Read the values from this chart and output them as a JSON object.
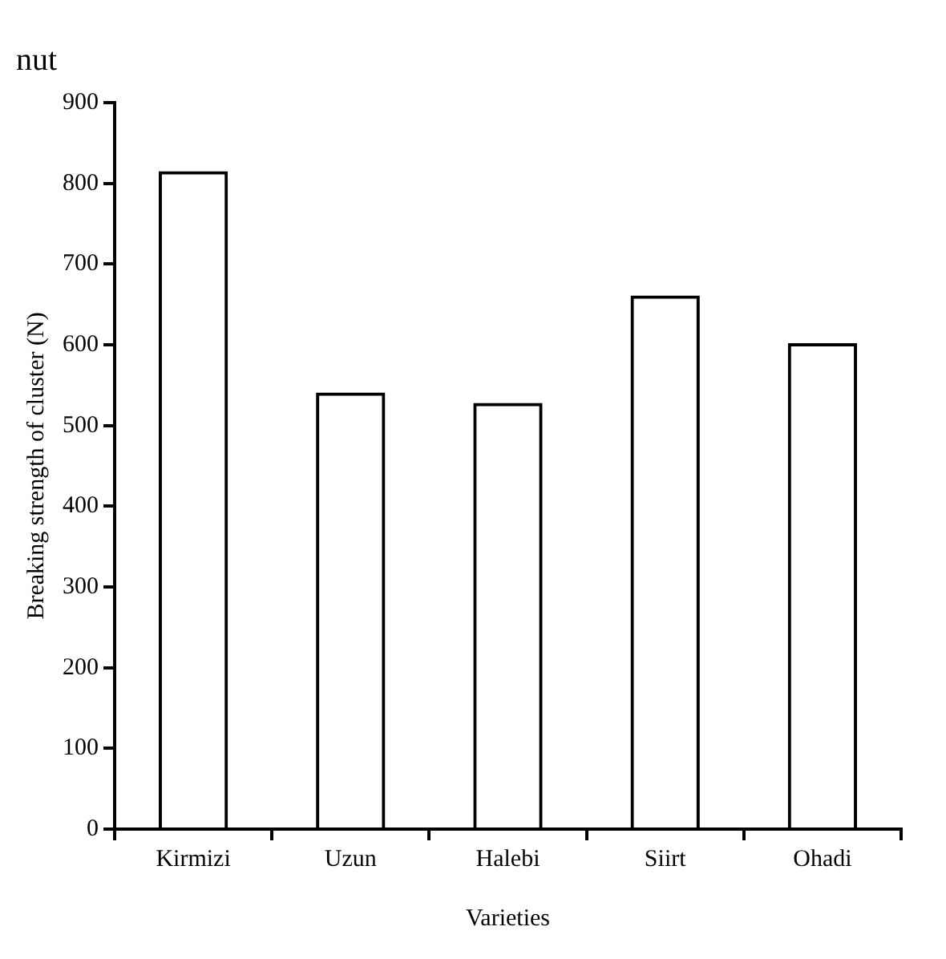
{
  "chart_data": {
    "type": "bar",
    "title": "nut",
    "xlabel": "Varieties",
    "ylabel": "Breaking strength of cluster (N)",
    "categories": [
      "Kirmizi",
      "Uzun",
      "Halebi",
      "Siirt",
      "Ohadi"
    ],
    "values": [
      815,
      541,
      528,
      661,
      602
    ],
    "color": "#000000",
    "ylim": [
      0,
      900
    ],
    "yticks": [
      0,
      100,
      200,
      300,
      400,
      500,
      600,
      700,
      800,
      900
    ],
    "grid": false,
    "legend": false
  }
}
